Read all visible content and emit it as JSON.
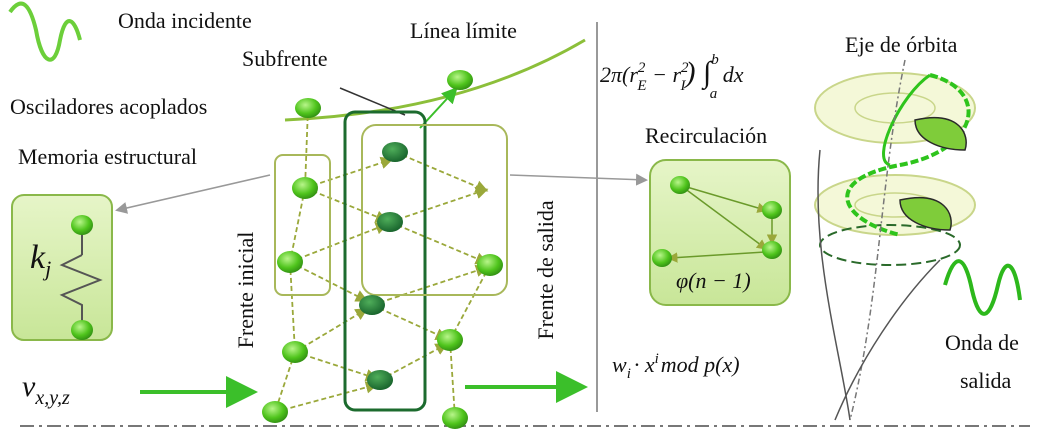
{
  "labels": {
    "incident_wave": "Onda incidente",
    "boundary_line": "Línea límite",
    "subfront": "Subfrente",
    "orbit_axis": "Eje de órbita",
    "coupled_oscillators": "Osciladores acoplados",
    "recirculation": "Recirculación",
    "structural_memory": "Memoria estructural",
    "initial_front": "Frente inicial",
    "exit_front": "Frente de salida",
    "output_wave": [
      "Onda de",
      "salida"
    ]
  },
  "math": {
    "integral": [
      "2π(r",
      "2",
      "E",
      " − r",
      "2",
      "I",
      ") ∫",
      "b",
      "a",
      " dx"
    ],
    "stiffness": {
      "base": "k",
      "sub": "j"
    },
    "velocity": {
      "base": "v",
      "sub": "x,y,z"
    },
    "recurrence": "φ(n − 1)",
    "weight": [
      "w",
      "i",
      "· x",
      "i",
      "mod p(x)"
    ]
  }
}
